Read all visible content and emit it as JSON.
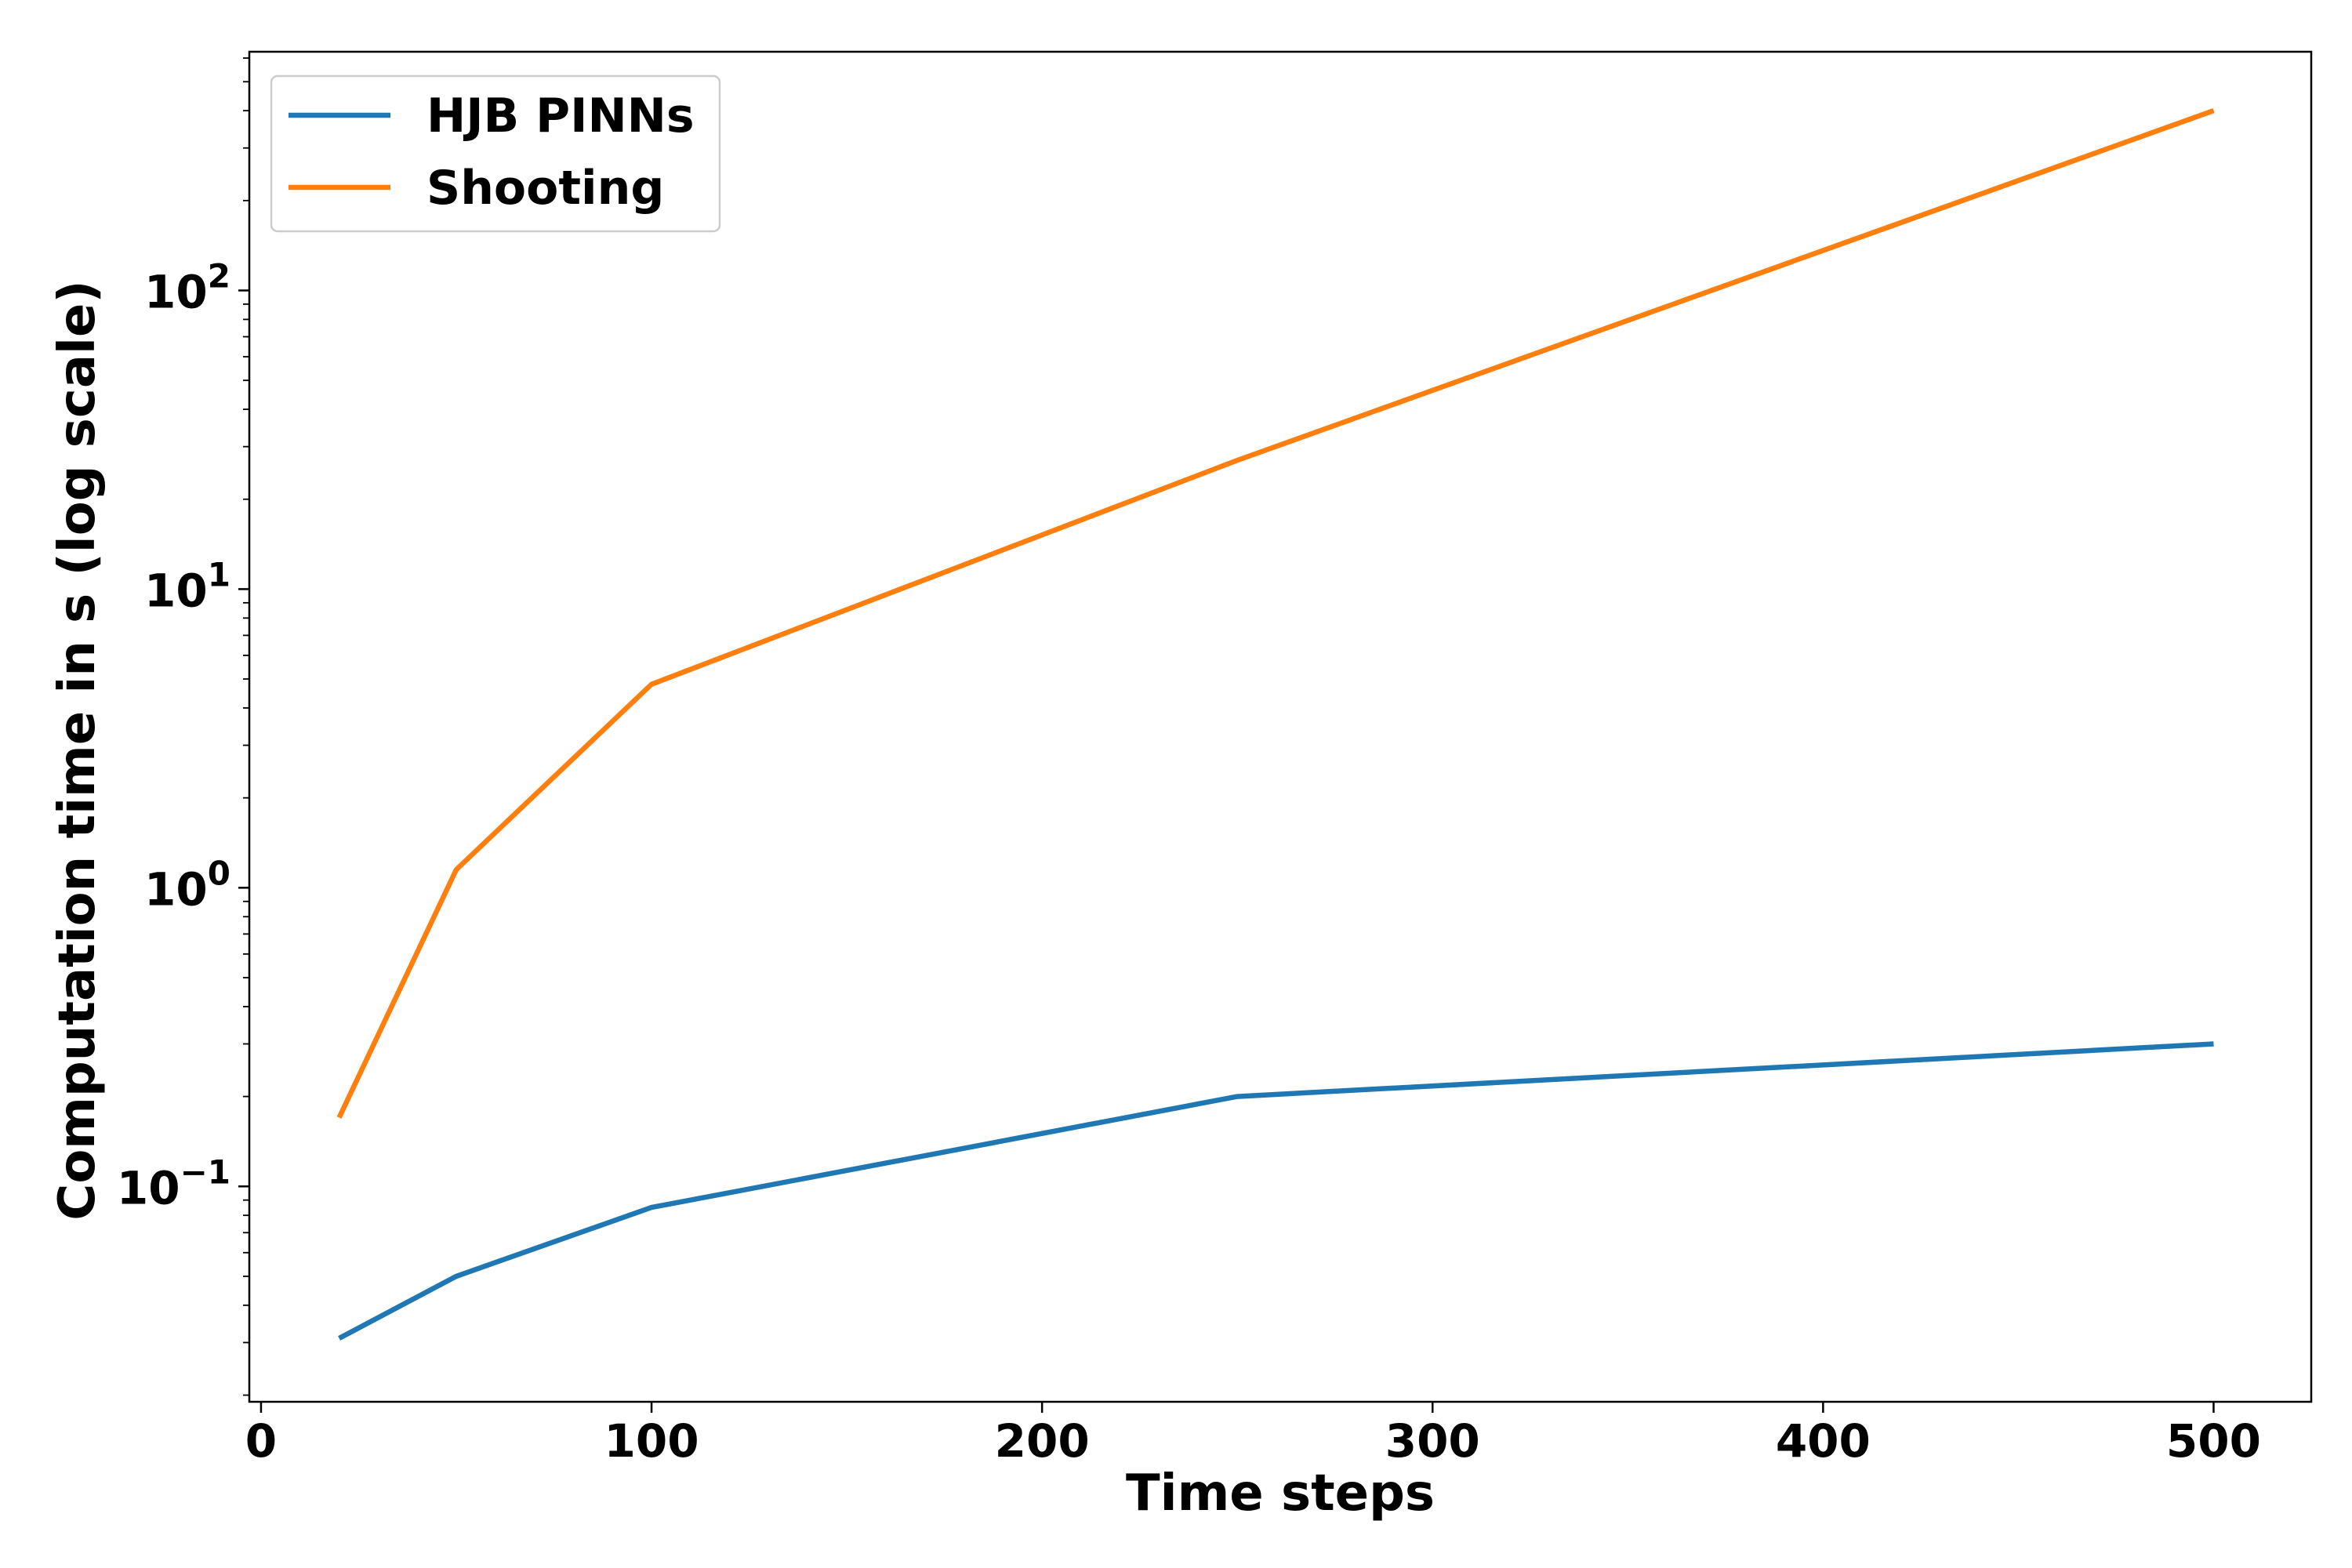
{
  "chart_data": {
    "type": "line",
    "title": "",
    "xlabel": "Time steps",
    "ylabel": "Computation time in s (log scale)",
    "yscale": "log",
    "xlim": [
      -3,
      525
    ],
    "ylim": [
      0.019,
      630
    ],
    "x_ticks": [
      {
        "value": 0,
        "label": "0"
      },
      {
        "value": 100,
        "label": "100"
      },
      {
        "value": 200,
        "label": "200"
      },
      {
        "value": 300,
        "label": "300"
      },
      {
        "value": 400,
        "label": "400"
      },
      {
        "value": 500,
        "label": "500"
      }
    ],
    "y_major_ticks": [
      {
        "value": 0.1,
        "base": "10",
        "exp": "−1"
      },
      {
        "value": 1,
        "base": "10",
        "exp": "0"
      },
      {
        "value": 10,
        "base": "10",
        "exp": "1"
      },
      {
        "value": 100,
        "base": "10",
        "exp": "2"
      }
    ],
    "grid": false,
    "legend_position": "top-left",
    "series": [
      {
        "name": "HJB PINNs",
        "color": "#1f77b4",
        "x": [
          20,
          50,
          100,
          250,
          500
        ],
        "y": [
          0.031,
          0.05,
          0.085,
          0.2,
          0.3
        ]
      },
      {
        "name": "Shooting",
        "color": "#ff7f0e",
        "x": [
          20,
          50,
          100,
          250,
          500
        ],
        "y": [
          0.17,
          1.15,
          4.8,
          27,
          400
        ]
      }
    ]
  }
}
